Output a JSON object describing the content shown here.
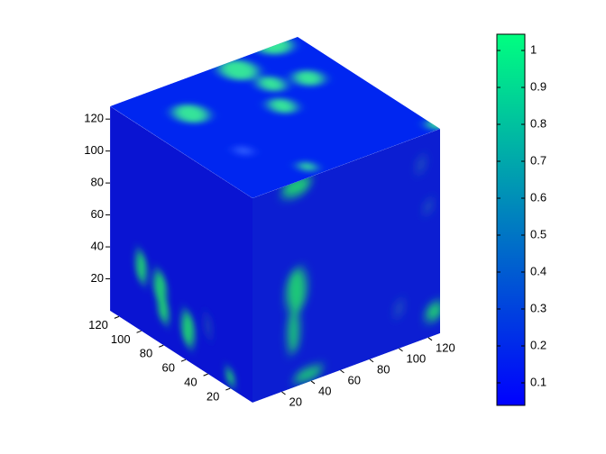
{
  "chart_data": {
    "type": "volume",
    "colormap": [
      "#0000ff",
      "#00ff80"
    ],
    "xlim": [
      0,
      128
    ],
    "xticks": [
      20,
      40,
      60,
      80,
      100,
      120
    ],
    "ylim": [
      0,
      128
    ],
    "yticks": [
      20,
      40,
      60,
      80,
      100,
      120
    ],
    "zlim": [
      0,
      128
    ],
    "zticks": [
      20,
      40,
      60,
      80,
      100,
      120
    ],
    "colorbar": {
      "lim": [
        0.039,
        1.044
      ],
      "ticks": [
        0.1,
        0.2,
        0.3,
        0.4,
        0.5,
        0.6,
        0.7,
        0.8,
        0.9,
        1
      ]
    }
  }
}
